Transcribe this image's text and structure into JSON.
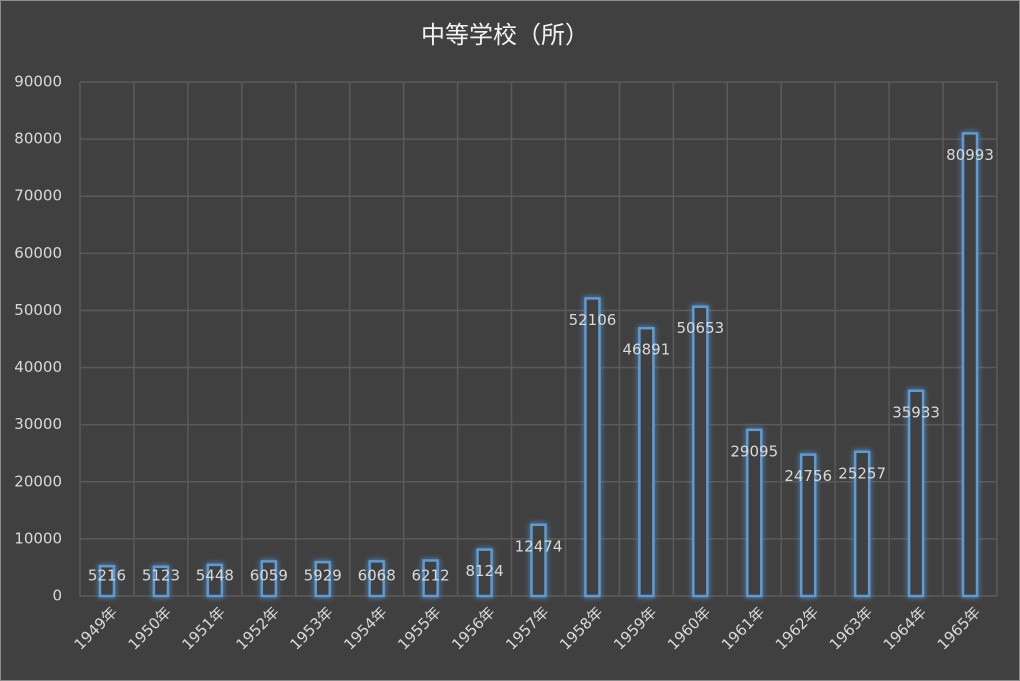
{
  "chart_data": {
    "type": "bar",
    "title": "中等学校（所）",
    "categories": [
      "1949年",
      "1950年",
      "1951年",
      "1952年",
      "1953年",
      "1954年",
      "1955年",
      "1956年",
      "1957年",
      "1958年",
      "1959年",
      "1960年",
      "1961年",
      "1962年",
      "1963年",
      "1964年",
      "1965年"
    ],
    "values": [
      5216,
      5123,
      5448,
      6059,
      5929,
      6068,
      6212,
      8124,
      12474,
      52106,
      46891,
      50653,
      29095,
      24756,
      25257,
      35933,
      80993
    ],
    "color": "#5b9bd5",
    "ylim": [
      0,
      90000
    ],
    "yticks": [
      0,
      10000,
      20000,
      30000,
      40000,
      50000,
      60000,
      70000,
      80000,
      90000
    ],
    "grid": true
  }
}
